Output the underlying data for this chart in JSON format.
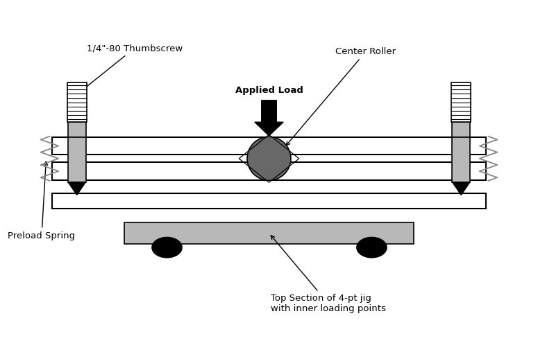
{
  "bg_color": "#ffffff",
  "fig_width": 7.75,
  "fig_height": 4.95,
  "dpi": 100,
  "labels": {
    "thumbscrew": "1/4\"-80 Thumbscrew",
    "center_roller": "Center Roller",
    "applied_load": "Applied Load",
    "preload_spring": "Preload Spring",
    "top_section": "Top Section of 4-pt jig\nwith inner loading points"
  },
  "colors": {
    "black": "#000000",
    "white": "#ffffff",
    "light_gray": "#b8b8b8",
    "dark_gray": "#686868",
    "medium_gray": "#888888"
  }
}
